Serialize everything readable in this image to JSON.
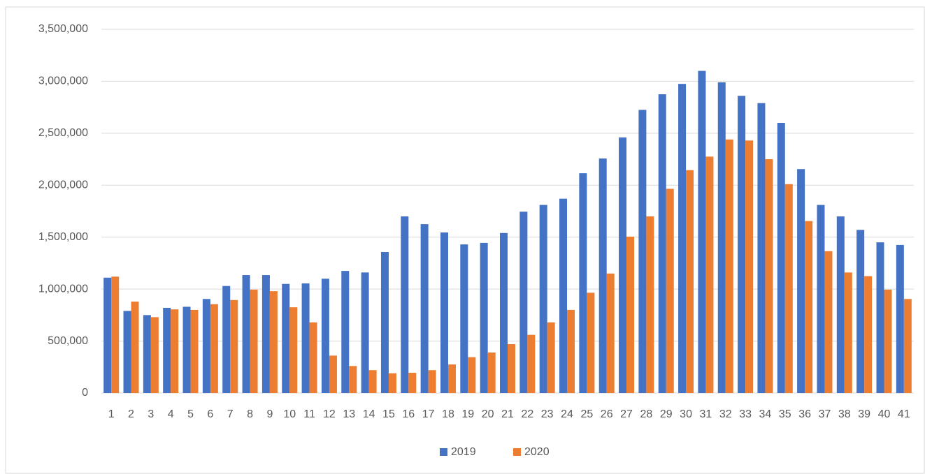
{
  "chart_data": {
    "type": "bar",
    "categories": [
      "1",
      "2",
      "3",
      "4",
      "5",
      "6",
      "7",
      "8",
      "9",
      "10",
      "11",
      "12",
      "13",
      "14",
      "15",
      "16",
      "17",
      "18",
      "19",
      "20",
      "21",
      "22",
      "23",
      "24",
      "25",
      "26",
      "27",
      "28",
      "29",
      "30",
      "31",
      "32",
      "33",
      "34",
      "35",
      "36",
      "37",
      "38",
      "39",
      "40",
      "41"
    ],
    "series": [
      {
        "name": "2019",
        "color": "#4472c4",
        "values": [
          1110000,
          790000,
          750000,
          820000,
          830000,
          905000,
          1030000,
          1135000,
          1135000,
          1050000,
          1055000,
          1100000,
          1175000,
          1160000,
          1357000,
          1700000,
          1625000,
          1545000,
          1430000,
          1445000,
          1540000,
          1745000,
          1810000,
          1870000,
          2115000,
          2257000,
          2460000,
          2725000,
          2875000,
          2975000,
          3100000,
          2990000,
          2860000,
          2790000,
          2600000,
          2155000,
          1810000,
          1700000,
          1570000,
          1450000,
          1425000
        ]
      },
      {
        "name": "2020",
        "color": "#ed7d31",
        "values": [
          1120000,
          880000,
          730000,
          805000,
          800000,
          855000,
          895000,
          995000,
          980000,
          825000,
          680000,
          360000,
          260000,
          220000,
          190000,
          195000,
          220000,
          275000,
          345000,
          390000,
          470000,
          560000,
          680000,
          800000,
          965000,
          1150000,
          1505000,
          1700000,
          1965000,
          2145000,
          2275000,
          2440000,
          2430000,
          2250000,
          2010000,
          1655000,
          1365000,
          1160000,
          1125000,
          995000,
          905000
        ]
      }
    ],
    "ylim": [
      0,
      3500000
    ],
    "yticks": [
      0,
      {
        "value": 500000,
        "label": "500,000"
      },
      {
        "value": 1000000,
        "label": "1,000,000"
      },
      {
        "value": 1500000,
        "label": "1,500,000"
      },
      {
        "value": 2000000,
        "label": "2,000,000"
      },
      {
        "value": 2500000,
        "label": "2,500,000"
      },
      {
        "value": 3000000,
        "label": "3,000,000"
      },
      {
        "value": 3500000,
        "label": "3,500,000"
      }
    ],
    "grid": true,
    "legend": "bottom"
  }
}
